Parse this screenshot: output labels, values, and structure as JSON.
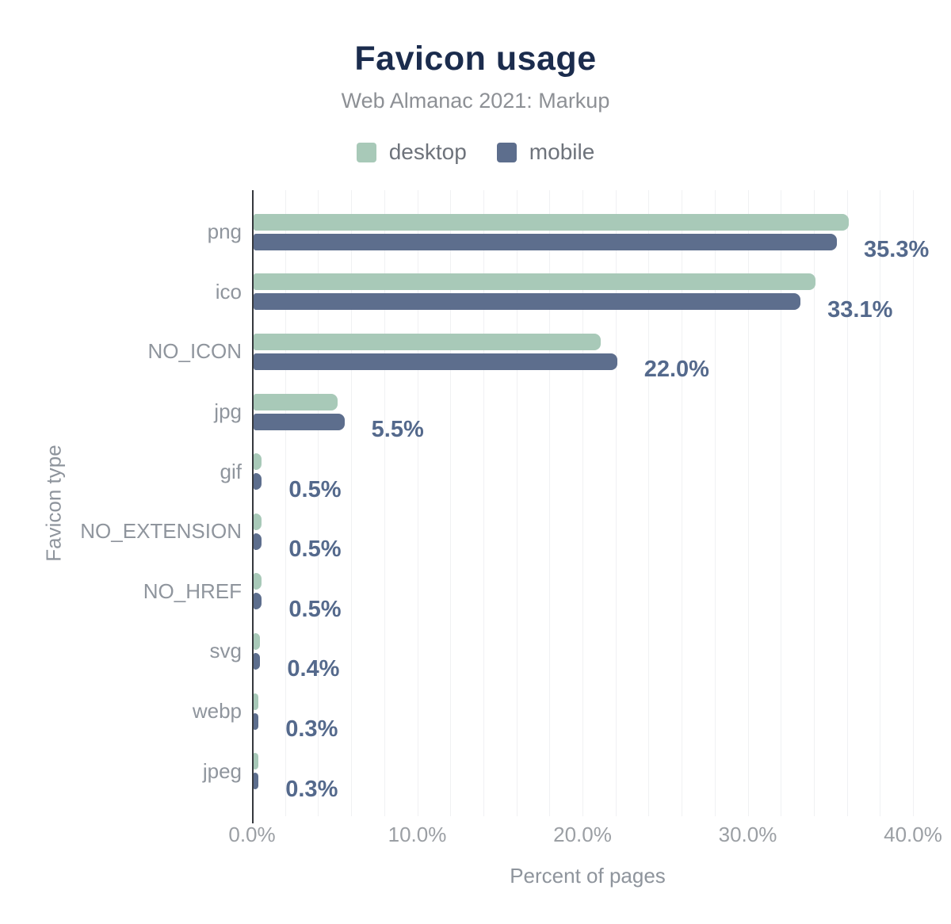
{
  "header": {
    "title": "Favicon usage",
    "subtitle": "Web Almanac 2021: Markup"
  },
  "legend": [
    {
      "label": "desktop",
      "color": "#a8c9b8"
    },
    {
      "label": "mobile",
      "color": "#5d6e8d"
    }
  ],
  "colors": {
    "desktop_bar": "#a8c9b8",
    "mobile_bar": "#5d6e8d",
    "value_label": "#54698c",
    "title": "#1b2c4d",
    "axis_line": "#35383d",
    "gridline": "#f0f1f3"
  },
  "chart_data": {
    "type": "bar",
    "orientation": "horizontal",
    "title": "Favicon usage",
    "subtitle": "Web Almanac 2021: Markup",
    "xlabel": "Percent of pages",
    "ylabel": "Favicon type",
    "xlim": [
      0,
      40.6
    ],
    "grid": true,
    "grid_step_pct": 2,
    "legend_position": "top",
    "categories": [
      "png",
      "ico",
      "NO_ICON",
      "jpg",
      "gif",
      "NO_EXTENSION",
      "NO_HREF",
      "svg",
      "webp",
      "jpeg"
    ],
    "series": [
      {
        "name": "desktop",
        "color": "#a8c9b8",
        "values": [
          36.0,
          34.0,
          21.0,
          5.1,
          0.5,
          0.5,
          0.5,
          0.4,
          0.3,
          0.3
        ]
      },
      {
        "name": "mobile",
        "color": "#5d6e8d",
        "values": [
          35.3,
          33.1,
          22.0,
          5.5,
          0.5,
          0.5,
          0.5,
          0.4,
          0.3,
          0.3
        ]
      }
    ],
    "value_labels": [
      "35.3%",
      "33.1%",
      "22.0%",
      "5.5%",
      "0.5%",
      "0.5%",
      "0.5%",
      "0.4%",
      "0.3%",
      "0.3%"
    ],
    "labeled_series": "mobile",
    "x_ticks": [
      {
        "value": 0,
        "label": "0.0%"
      },
      {
        "value": 10,
        "label": "10.0%"
      },
      {
        "value": 20,
        "label": "20.0%"
      },
      {
        "value": 30,
        "label": "30.0%"
      },
      {
        "value": 40,
        "label": "40.0%"
      }
    ]
  }
}
